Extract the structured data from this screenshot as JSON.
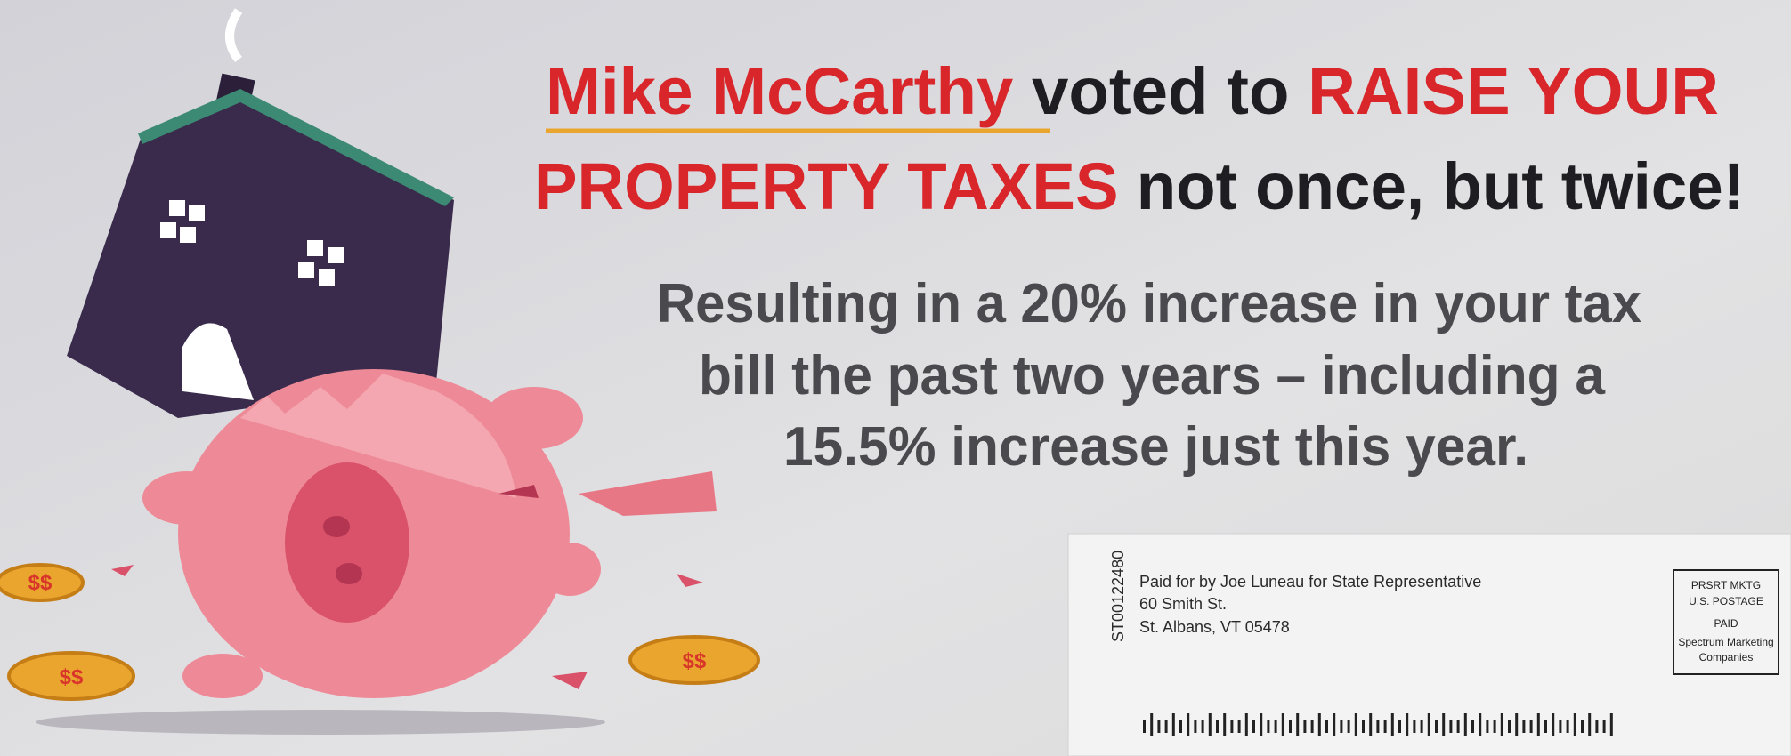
{
  "headline": {
    "lines": [
      [
        "Mike McCarthy",
        " voted to ",
        "RAISE YOUR"
      ],
      [
        "PROPERTY TAXES",
        " not once, but twice!"
      ]
    ]
  },
  "body": {
    "lines": [
      "Resulting in a 20% increase in your tax",
      "bill the past two years – including a",
      "15.5% increase just this year."
    ]
  },
  "mailing": {
    "code": "ST00122480",
    "sender": [
      "Paid for by Joe Luneau for State Representative",
      "60 Smith St.",
      "St. Albans, VT 05478"
    ],
    "indicia": [
      "PRSRT MKTG",
      "U.S. POSTAGE",
      "PAID",
      "Spectrum Marketing",
      "Companies"
    ]
  }
}
